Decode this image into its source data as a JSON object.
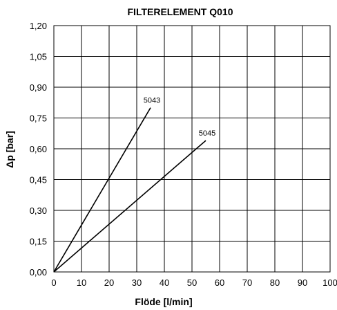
{
  "chart_data": {
    "type": "line",
    "title": "FILTERELEMENT Q010",
    "xlabel": "Flöde [l/min]",
    "ylabel": "Δp  [bar]",
    "xlim": [
      0,
      100
    ],
    "ylim": [
      0,
      1.2
    ],
    "x_ticks": [
      "0",
      "10",
      "20",
      "30",
      "40",
      "50",
      "60",
      "70",
      "80",
      "90",
      "100"
    ],
    "y_ticks": [
      "0,00",
      "0,15",
      "0,30",
      "0,45",
      "0,60",
      "0,75",
      "0,90",
      "1,05",
      "1,20"
    ],
    "grid": true,
    "series": [
      {
        "name": "5043",
        "x": [
          0,
          35
        ],
        "y": [
          0,
          0.8
        ]
      },
      {
        "name": "5045",
        "x": [
          0,
          55
        ],
        "y": [
          0,
          0.64
        ]
      }
    ]
  }
}
